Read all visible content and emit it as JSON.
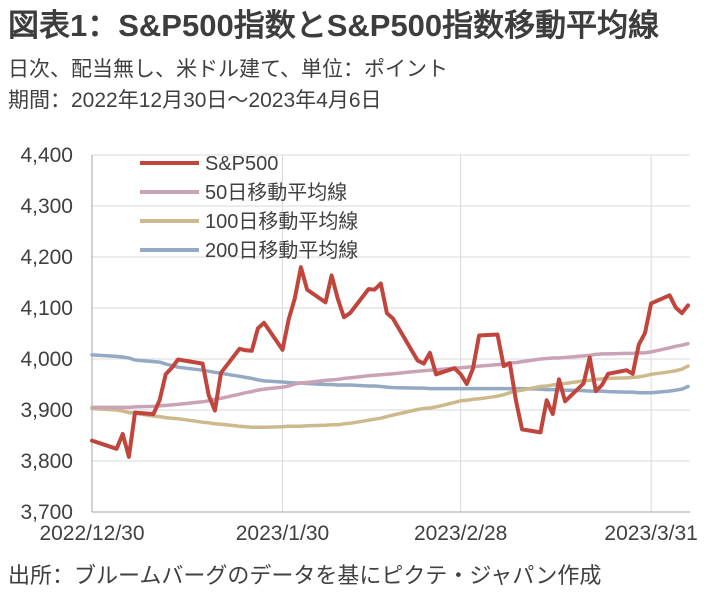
{
  "chart_data": {
    "type": "line",
    "title": "図表1：S&P500指数とS&P500指数移動平均線",
    "subtitle": [
      "日次、配当無し、米ドル建て、単位：ポイント",
      "期間：2022年12月30日～2023年4月6日"
    ],
    "source": "出所：ブルームバーグのデータを基にピクテ・ジャパン作成",
    "xlim": [
      "2022-12-30",
      "2023-04-06"
    ],
    "ylim": [
      3700,
      4400
    ],
    "xticks": [
      {
        "value": "2022-12-30",
        "label": "2022/12/30"
      },
      {
        "value": "2023-01-30",
        "label": "2023/1/30"
      },
      {
        "value": "2023-02-28",
        "label": "2023/2/28"
      },
      {
        "value": "2023-03-31",
        "label": "2023/3/31"
      }
    ],
    "yticks": [
      {
        "value": 4400,
        "label": "4,400"
      },
      {
        "value": 4300,
        "label": "4,300"
      },
      {
        "value": 4200,
        "label": "4,200"
      },
      {
        "value": 4100,
        "label": "4,100"
      },
      {
        "value": 4000,
        "label": "4,000"
      },
      {
        "value": 3900,
        "label": "3,900"
      },
      {
        "value": 3800,
        "label": "3,800"
      },
      {
        "value": 3700,
        "label": "3,700"
      }
    ],
    "grid": true,
    "legend": "top-left",
    "x": [
      "2022-12-30",
      "2023-01-03",
      "2023-01-04",
      "2023-01-05",
      "2023-01-06",
      "2023-01-09",
      "2023-01-10",
      "2023-01-11",
      "2023-01-12",
      "2023-01-13",
      "2023-01-17",
      "2023-01-18",
      "2023-01-19",
      "2023-01-20",
      "2023-01-23",
      "2023-01-24",
      "2023-01-25",
      "2023-01-26",
      "2023-01-27",
      "2023-01-30",
      "2023-01-31",
      "2023-02-01",
      "2023-02-02",
      "2023-02-03",
      "2023-02-06",
      "2023-02-07",
      "2023-02-08",
      "2023-02-09",
      "2023-02-10",
      "2023-02-13",
      "2023-02-14",
      "2023-02-15",
      "2023-02-16",
      "2023-02-17",
      "2023-02-21",
      "2023-02-22",
      "2023-02-23",
      "2023-02-24",
      "2023-02-27",
      "2023-02-28",
      "2023-03-01",
      "2023-03-02",
      "2023-03-03",
      "2023-03-06",
      "2023-03-07",
      "2023-03-08",
      "2023-03-09",
      "2023-03-10",
      "2023-03-13",
      "2023-03-14",
      "2023-03-15",
      "2023-03-16",
      "2023-03-17",
      "2023-03-20",
      "2023-03-21",
      "2023-03-22",
      "2023-03-23",
      "2023-03-24",
      "2023-03-27",
      "2023-03-28",
      "2023-03-29",
      "2023-03-30",
      "2023-03-31",
      "2023-04-03",
      "2023-04-04",
      "2023-04-05",
      "2023-04-06"
    ],
    "series": [
      {
        "name": "S&P500",
        "color": "#c0453c",
        "values": [
          3840,
          3824,
          3853,
          3808,
          3895,
          3892,
          3919,
          3970,
          3983,
          3999,
          3991,
          3929,
          3899,
          3973,
          4020,
          4017,
          4016,
          4060,
          4071,
          4018,
          4077,
          4119,
          4180,
          4136,
          4111,
          4164,
          4118,
          4082,
          4090,
          4137,
          4136,
          4148,
          4090,
          4079,
          3997,
          3991,
          4012,
          3970,
          3982,
          3970,
          3951,
          3981,
          4046,
          4048,
          3986,
          3992,
          3918,
          3862,
          3856,
          3919,
          3892,
          3960,
          3917,
          3952,
          4003,
          3937,
          3949,
          3971,
          3978,
          3971,
          4028,
          4051,
          4109,
          4125,
          4101,
          4090,
          4105
        ]
      },
      {
        "name": "50日移動平均線",
        "color": "#c9a3b5",
        "values": [
          3905,
          3905,
          3905,
          3905,
          3906,
          3907,
          3908,
          3909,
          3910,
          3911,
          3916,
          3918,
          3921,
          3923,
          3931,
          3934,
          3936,
          3939,
          3941,
          3945,
          3947,
          3951,
          3953,
          3954,
          3958,
          3959,
          3960,
          3962,
          3963,
          3967,
          3968,
          3969,
          3970,
          3971,
          3976,
          3977,
          3978,
          3979,
          3982,
          3983,
          3984,
          3985,
          3986,
          3989,
          3990,
          3992,
          3993,
          3995,
          4000,
          4001,
          4002,
          4002,
          4003,
          4006,
          4007,
          4009,
          4010,
          4010,
          4011,
          4011,
          4012,
          4012,
          4014,
          4022,
          4025,
          4027,
          4030
        ]
      },
      {
        "name": "100日移動平均線",
        "color": "#cdb98c",
        "values": [
          3903,
          3900,
          3898,
          3895,
          3894,
          3888,
          3887,
          3885,
          3884,
          3883,
          3876,
          3875,
          3873,
          3872,
          3868,
          3867,
          3866,
          3866,
          3866,
          3867,
          3868,
          3868,
          3868,
          3869,
          3870,
          3871,
          3871,
          3873,
          3874,
          3880,
          3882,
          3884,
          3887,
          3890,
          3901,
          3903,
          3904,
          3906,
          3915,
          3918,
          3919,
          3921,
          3922,
          3927,
          3930,
          3934,
          3937,
          3939,
          3946,
          3947,
          3949,
          3951,
          3952,
          3957,
          3958,
          3960,
          3961,
          3962,
          3963,
          3964,
          3965,
          3967,
          3970,
          3975,
          3977,
          3980,
          3986
        ]
      },
      {
        "name": "200日移動平均線",
        "color": "#94a9c4",
        "values": [
          4008,
          4005,
          4004,
          4002,
          3998,
          3995,
          3994,
          3990,
          3987,
          3984,
          3978,
          3976,
          3974,
          3972,
          3966,
          3964,
          3962,
          3959,
          3957,
          3955,
          3954,
          3953,
          3953,
          3952,
          3950,
          3950,
          3949,
          3949,
          3949,
          3947,
          3947,
          3946,
          3945,
          3944,
          3943,
          3943,
          3942,
          3942,
          3942,
          3942,
          3942,
          3942,
          3942,
          3942,
          3942,
          3942,
          3942,
          3942,
          3941,
          3940,
          3940,
          3940,
          3939,
          3938,
          3937,
          3937,
          3937,
          3936,
          3935,
          3935,
          3934,
          3934,
          3934,
          3937,
          3939,
          3941,
          3946
        ]
      }
    ]
  }
}
